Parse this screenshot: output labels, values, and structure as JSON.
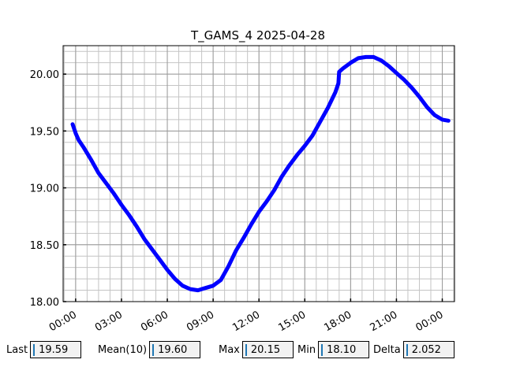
{
  "chart_data": {
    "type": "line",
    "title": "T_GAMS_4 2025-04-28",
    "xlabel": "",
    "ylabel": "",
    "x_unit": "hours",
    "xlim": [
      -0.82,
      24.8
    ],
    "ylim": [
      18.0,
      20.25
    ],
    "x_ticks": [
      {
        "value": 0,
        "label": "00:00"
      },
      {
        "value": 3,
        "label": "03:00"
      },
      {
        "value": 6,
        "label": "06:00"
      },
      {
        "value": 9,
        "label": "09:00"
      },
      {
        "value": 12,
        "label": "12:00"
      },
      {
        "value": 15,
        "label": "15:00"
      },
      {
        "value": 18,
        "label": "18:00"
      },
      {
        "value": 21,
        "label": "21:00"
      },
      {
        "value": 24,
        "label": "00:00"
      }
    ],
    "y_ticks": [
      {
        "value": 18.0,
        "label": "18.00"
      },
      {
        "value": 18.5,
        "label": "18.50"
      },
      {
        "value": 19.0,
        "label": "19.00"
      },
      {
        "value": 19.5,
        "label": "19.50"
      },
      {
        "value": 20.0,
        "label": "20.00"
      }
    ],
    "grid": true,
    "series": [
      {
        "color": "#0000ff",
        "points": [
          [
            -0.2,
            19.56
          ],
          [
            0.0,
            19.48
          ],
          [
            0.2,
            19.42
          ],
          [
            0.5,
            19.36
          ],
          [
            1.0,
            19.25
          ],
          [
            1.5,
            19.13
          ],
          [
            2.0,
            19.04
          ],
          [
            2.5,
            18.95
          ],
          [
            3.0,
            18.85
          ],
          [
            3.5,
            18.76
          ],
          [
            4.0,
            18.66
          ],
          [
            4.5,
            18.55
          ],
          [
            5.0,
            18.46
          ],
          [
            5.5,
            18.37
          ],
          [
            6.0,
            18.28
          ],
          [
            6.5,
            18.2
          ],
          [
            7.0,
            18.14
          ],
          [
            7.5,
            18.11
          ],
          [
            8.0,
            18.1
          ],
          [
            8.5,
            18.12
          ],
          [
            9.0,
            18.14
          ],
          [
            9.5,
            18.19
          ],
          [
            10.0,
            18.31
          ],
          [
            10.5,
            18.45
          ],
          [
            11.0,
            18.56
          ],
          [
            11.5,
            18.68
          ],
          [
            12.0,
            18.79
          ],
          [
            12.5,
            18.88
          ],
          [
            13.0,
            18.98
          ],
          [
            13.5,
            19.1
          ],
          [
            14.0,
            19.2
          ],
          [
            14.5,
            19.29
          ],
          [
            15.0,
            19.37
          ],
          [
            15.5,
            19.46
          ],
          [
            16.0,
            19.58
          ],
          [
            16.5,
            19.7
          ],
          [
            17.0,
            19.84
          ],
          [
            17.2,
            19.92
          ],
          [
            17.25,
            20.02
          ],
          [
            17.5,
            20.05
          ],
          [
            18.0,
            20.1
          ],
          [
            18.5,
            20.14
          ],
          [
            19.0,
            20.15
          ],
          [
            19.5,
            20.15
          ],
          [
            20.0,
            20.12
          ],
          [
            20.5,
            20.07
          ],
          [
            21.0,
            20.01
          ],
          [
            21.5,
            19.95
          ],
          [
            22.0,
            19.88
          ],
          [
            22.5,
            19.8
          ],
          [
            23.0,
            19.71
          ],
          [
            23.5,
            19.64
          ],
          [
            24.0,
            19.6
          ],
          [
            24.4,
            19.59
          ]
        ]
      }
    ]
  },
  "stats": {
    "last_label": "Last",
    "last_value": "19.59",
    "mean_label": "Mean(10)",
    "mean_value": "19.60",
    "max_label": "Max",
    "max_value": "20.15",
    "min_label": "Min",
    "min_value": "18.10",
    "delta_label": "Delta",
    "delta_value": "2.052"
  }
}
